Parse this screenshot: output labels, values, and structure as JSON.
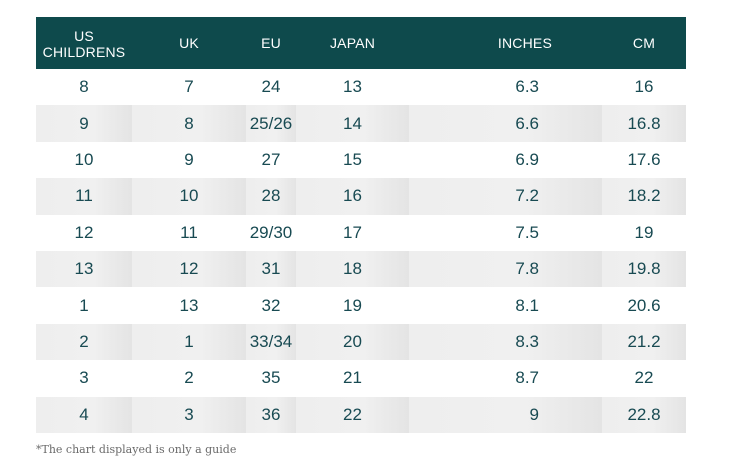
{
  "table": {
    "headers": [
      [
        "US",
        "CHILDRENS"
      ],
      [
        "UK"
      ],
      [
        "EU"
      ],
      [
        "JAPAN"
      ],
      [
        "INCHES"
      ],
      [
        "CM"
      ]
    ],
    "rows": [
      [
        "8",
        "7",
        "24",
        "13",
        "6.3",
        "16"
      ],
      [
        "9",
        "8",
        "25/26",
        "14",
        "6.6",
        "16.8"
      ],
      [
        "10",
        "9",
        "27",
        "15",
        "6.9",
        "17.6"
      ],
      [
        "11",
        "10",
        "28",
        "16",
        "7.2",
        "18.2"
      ],
      [
        "12",
        "11",
        "29/30",
        "17",
        "7.5",
        "19"
      ],
      [
        "13",
        "12",
        "31",
        "18",
        "7.8",
        "19.8"
      ],
      [
        "1",
        "13",
        "32",
        "19",
        "8.1",
        "20.6"
      ],
      [
        "2",
        "1",
        "33/34",
        "20",
        "8.3",
        "21.2"
      ],
      [
        "3",
        "2",
        "35",
        "21",
        "8.7",
        "22"
      ],
      [
        "4",
        "3",
        "36",
        "22",
        "9",
        "22.8"
      ]
    ]
  },
  "footnote": "*The chart displayed is only a guide",
  "colors": {
    "header_bg": "#0e4a4c",
    "header_text": "#ffffff",
    "cell_text": "#184a52",
    "stripe": "#eeeeee",
    "footnote_text": "#6a6a6a"
  }
}
